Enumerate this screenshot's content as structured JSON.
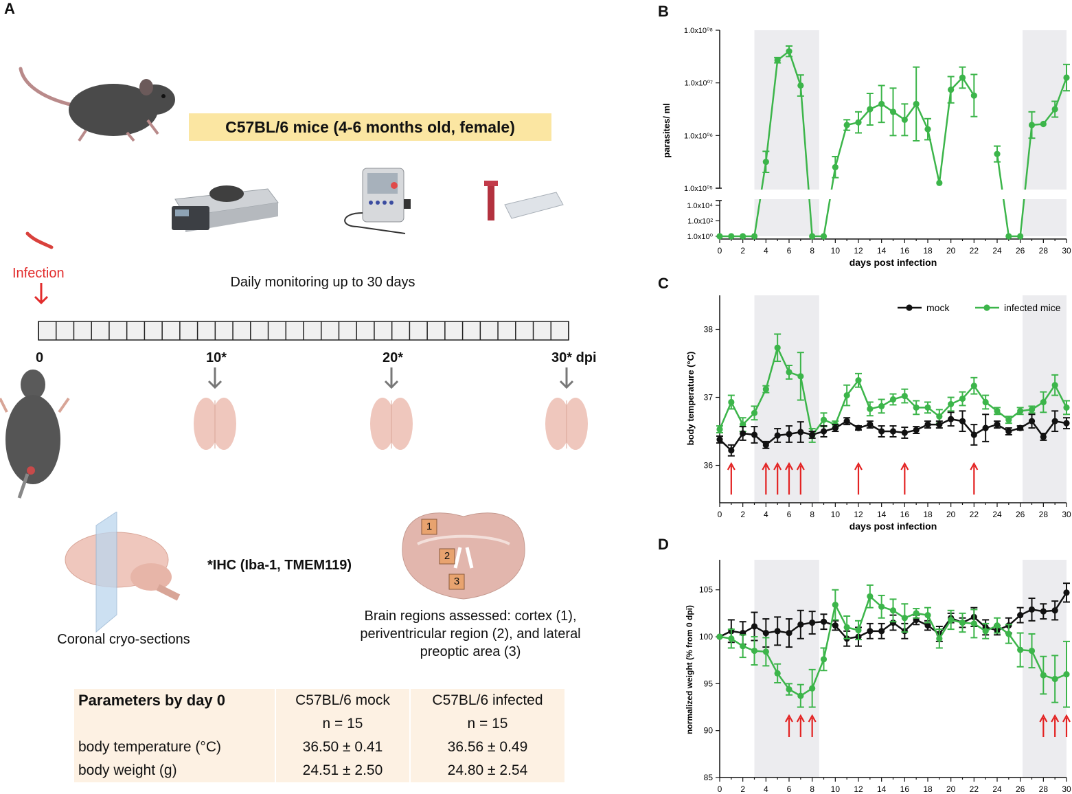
{
  "panels": {
    "a": "A",
    "b": "B",
    "c": "C",
    "d": "D"
  },
  "colors": {
    "infected": "#3cb54a",
    "mock": "#111111",
    "shade": "#ececef",
    "arrow": "#e32222",
    "banner": "#fbe6a2",
    "table_bg": "#fdf1e3",
    "red_text": "#e22d2d"
  },
  "panel_a": {
    "banner": "C57BL/6 mice (4-6 months old, female)",
    "infection_label": "Infection",
    "monitoring": "Daily monitoring up to 30 days",
    "timeline_labels": [
      "0",
      "10*",
      "20*",
      "30* dpi"
    ],
    "ihc": "*IHC (Iba-1, TMEM119)",
    "sections_caption": "Coronal cryo-sections",
    "regions_caption_1": "Brain regions assessed: cortex (1),",
    "regions_caption_2": "periventricular region (2), and lateral",
    "regions_caption_3": "preoptic area (3)",
    "region_numbers": [
      "1",
      "2",
      "3"
    ],
    "table": {
      "header": [
        "Parameters by day 0",
        "C57BL/6 mock",
        "C57BL/6 infected"
      ],
      "rows": [
        [
          "",
          "n = 15",
          "n = 15"
        ],
        [
          "body temperature (°C)",
          "36.50 ± 0.41",
          "36.56 ± 0.49"
        ],
        [
          "body weight (g)",
          "24.51 ± 2.50",
          "24.80 ± 2.54"
        ]
      ]
    }
  },
  "chart_data": [
    {
      "id": "B",
      "type": "line",
      "ylabel": "parasites/ ml",
      "xlabel": "days post infection",
      "y_scale": "log, segmented axis",
      "xlim": [
        0,
        30
      ],
      "x_ticks": [
        "0",
        "2",
        "4",
        "6",
        "8",
        "10",
        "12",
        "14",
        "16",
        "18",
        "20",
        "22",
        "24",
        "26",
        "28",
        "30"
      ],
      "y_ticks_upper": [
        "1.0x10⁰⁸",
        "1.0x10⁰⁷",
        "1.0x10⁰⁶",
        "1.0x10⁰⁵"
      ],
      "y_ticks_lower": [
        "1.0x10⁴",
        "1.0x10²",
        "1.0x10⁰"
      ],
      "shaded_ranges": [
        [
          3,
          8.6
        ],
        [
          26.2,
          30
        ]
      ],
      "series": [
        {
          "name": "infected mice",
          "x": [
            0,
            1,
            2,
            3,
            4,
            5,
            6,
            7,
            8,
            9,
            10,
            11,
            12,
            13,
            14,
            15,
            16,
            17,
            18,
            19,
            20,
            21,
            22,
            23,
            24,
            25,
            26,
            27,
            28,
            29,
            30
          ],
          "log10_y": [
            0,
            0,
            0,
            0,
            5.5,
            7.43,
            7.6,
            6.95,
            0,
            0,
            5.4,
            6.2,
            6.25,
            6.5,
            6.6,
            6.45,
            6.3,
            6.6,
            6.12,
            5.1,
            6.87,
            7.1,
            6.76,
            null,
            5.65,
            0,
            0,
            6.2,
            6.22,
            6.5,
            7.1
          ],
          "log10_err": [
            0,
            0,
            0,
            0,
            0.2,
            0.05,
            0.1,
            0.2,
            0,
            0,
            0.2,
            0.1,
            0.2,
            0.3,
            0.35,
            0.45,
            0.3,
            0.7,
            0.2,
            0,
            0.25,
            0.2,
            0.4,
            null,
            0.15,
            0,
            0,
            0.25,
            0,
            0.15,
            0.25
          ]
        }
      ]
    },
    {
      "id": "C",
      "type": "line",
      "ylabel": "body temperature (°C)",
      "xlabel": "days post infection",
      "xlim": [
        0,
        30
      ],
      "ylim": [
        35.45,
        38.5
      ],
      "y_ticks": [
        "36",
        "37",
        "38"
      ],
      "x_ticks": [
        "0",
        "2",
        "4",
        "6",
        "8",
        "10",
        "12",
        "14",
        "16",
        "18",
        "20",
        "22",
        "24",
        "26",
        "28",
        "30"
      ],
      "shaded_ranges": [
        [
          3,
          8.6
        ],
        [
          26.2,
          30
        ]
      ],
      "legend": [
        "mock",
        "infected mice"
      ],
      "arrow_days": [
        1,
        4,
        5,
        6,
        7,
        12,
        16,
        22
      ],
      "series": [
        {
          "name": "mock",
          "x": [
            0,
            1,
            2,
            3,
            4,
            5,
            6,
            7,
            8,
            9,
            10,
            11,
            12,
            13,
            14,
            15,
            16,
            17,
            18,
            19,
            20,
            21,
            22,
            23,
            24,
            25,
            26,
            27,
            28,
            29,
            30
          ],
          "values": [
            36.38,
            36.22,
            36.47,
            36.45,
            36.3,
            36.44,
            36.46,
            36.49,
            36.45,
            36.5,
            36.55,
            36.65,
            36.55,
            36.6,
            36.5,
            36.5,
            36.48,
            36.52,
            36.6,
            36.6,
            36.68,
            36.65,
            36.45,
            36.55,
            36.6,
            36.5,
            36.55,
            36.65,
            36.42,
            36.65,
            36.62
          ],
          "errors": [
            0.05,
            0.08,
            0.1,
            0.12,
            0.05,
            0.1,
            0.12,
            0.15,
            0.05,
            0.08,
            0.05,
            0.05,
            0.03,
            0.05,
            0.08,
            0.08,
            0.08,
            0.05,
            0.05,
            0.05,
            0.1,
            0.15,
            0.15,
            0.2,
            0.05,
            0.05,
            0.03,
            0.1,
            0.05,
            0.15,
            0.08
          ]
        },
        {
          "name": "infected mice",
          "x": [
            0,
            1,
            2,
            3,
            4,
            5,
            6,
            7,
            8,
            9,
            10,
            11,
            12,
            13,
            14,
            15,
            16,
            17,
            18,
            19,
            20,
            21,
            22,
            23,
            24,
            25,
            26,
            27,
            28,
            29,
            30
          ],
          "values": [
            36.53,
            36.93,
            36.6,
            36.77,
            37.12,
            37.73,
            37.37,
            37.31,
            36.44,
            36.67,
            36.6,
            37.03,
            37.25,
            36.83,
            36.87,
            36.97,
            37.02,
            36.85,
            36.85,
            36.72,
            36.9,
            36.98,
            37.17,
            36.93,
            36.8,
            36.67,
            36.8,
            36.82,
            36.93,
            37.18,
            36.85
          ],
          "errors": [
            0.05,
            0.1,
            0.1,
            0.1,
            0.05,
            0.2,
            0.1,
            0.35,
            0.1,
            0.1,
            0.05,
            0.15,
            0.1,
            0.1,
            0.1,
            0.08,
            0.1,
            0.1,
            0.08,
            0.1,
            0.1,
            0.1,
            0.12,
            0.1,
            0.05,
            0.05,
            0.05,
            0.05,
            0.15,
            0.15,
            0.1
          ]
        }
      ]
    },
    {
      "id": "D",
      "type": "line",
      "ylabel": "normalized weight (% from 0 dpi)",
      "xlabel": "days post infection",
      "xlim": [
        0,
        30
      ],
      "ylim": [
        85,
        108.2
      ],
      "y_ticks": [
        "85",
        "90",
        "95",
        "100",
        "105"
      ],
      "x_ticks": [
        "0",
        "2",
        "4",
        "6",
        "8",
        "10",
        "12",
        "14",
        "16",
        "18",
        "20",
        "22",
        "24",
        "26",
        "28",
        "30"
      ],
      "shaded_ranges": [
        [
          3,
          8.6
        ],
        [
          26.2,
          30
        ]
      ],
      "arrow_days": [
        6,
        7,
        8,
        28,
        29,
        30
      ],
      "series": [
        {
          "name": "mock",
          "x": [
            0,
            1,
            2,
            3,
            4,
            5,
            6,
            7,
            8,
            9,
            10,
            11,
            12,
            13,
            14,
            15,
            16,
            17,
            18,
            19,
            20,
            21,
            22,
            23,
            24,
            25,
            26,
            27,
            28,
            29,
            30
          ],
          "values": [
            100.0,
            100.6,
            100.4,
            101.1,
            100.4,
            100.6,
            100.4,
            101.3,
            101.5,
            101.6,
            101.2,
            99.8,
            100.0,
            100.6,
            100.6,
            101.5,
            100.6,
            101.8,
            101.2,
            100.3,
            102.0,
            101.5,
            102.1,
            101.0,
            100.7,
            101.2,
            102.3,
            102.9,
            102.7,
            102.8,
            104.7
          ],
          "errors": [
            0,
            1.2,
            1.2,
            1.5,
            1.5,
            1.5,
            1.5,
            1.5,
            1.2,
            0.8,
            0.5,
            0.8,
            1.0,
            0.8,
            0.8,
            0.8,
            0.8,
            0.5,
            0.5,
            0.8,
            0.5,
            0.5,
            1.0,
            0.8,
            0.5,
            0.8,
            0.8,
            1.2,
            0.8,
            1.0,
            1.0
          ]
        },
        {
          "name": "infected mice",
          "x": [
            0,
            1,
            2,
            3,
            4,
            5,
            6,
            7,
            8,
            9,
            10,
            11,
            12,
            13,
            14,
            15,
            16,
            17,
            18,
            19,
            20,
            21,
            22,
            23,
            24,
            25,
            26,
            27,
            28,
            29,
            30
          ],
          "values": [
            100.0,
            99.8,
            99.0,
            98.5,
            98.4,
            96.1,
            94.4,
            93.7,
            94.5,
            97.6,
            103.4,
            101.0,
            100.7,
            104.3,
            103.2,
            102.8,
            102.0,
            102.5,
            102.3,
            99.8,
            101.8,
            101.5,
            101.4,
            100.6,
            101.2,
            100.3,
            98.6,
            98.5,
            95.9,
            95.5,
            96.0
          ],
          "errors": [
            0,
            1.0,
            1.2,
            1.5,
            1.5,
            1.0,
            0.6,
            1.2,
            2.0,
            1.2,
            1.6,
            1.2,
            1.0,
            1.2,
            1.2,
            1.2,
            1.5,
            0.5,
            0.8,
            1.0,
            1.0,
            1.0,
            1.5,
            0.8,
            0.8,
            1.0,
            1.8,
            1.8,
            2.0,
            2.5,
            3.5
          ]
        }
      ]
    }
  ]
}
